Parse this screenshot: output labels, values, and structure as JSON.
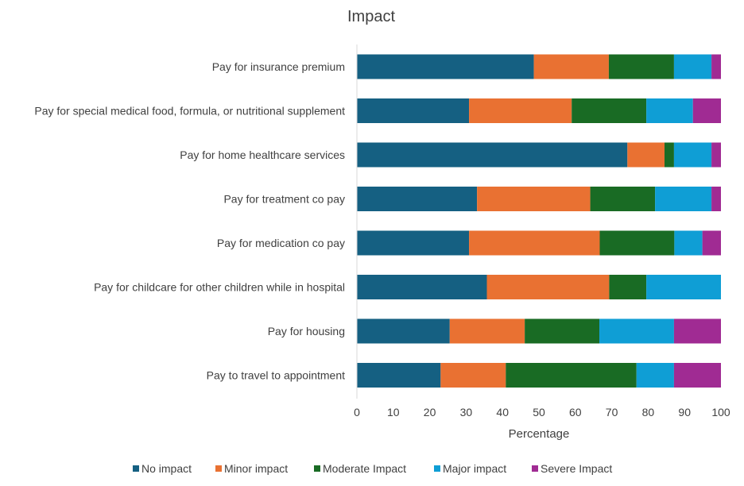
{
  "chart_data": {
    "type": "bar",
    "orientation": "horizontal",
    "stacked": true,
    "title": "Impact",
    "xlabel": "Percentage",
    "ylabel": "",
    "xlim": [
      0,
      100
    ],
    "xticks": [
      "0",
      "10",
      "20",
      "30",
      "40",
      "50",
      "60",
      "70",
      "80",
      "90",
      "100"
    ],
    "grid": false,
    "legend_position": "bottom",
    "categories": [
      "Pay for insurance premium",
      "Pay for special medical food, formula, or nutritional supplement",
      "Pay for home healthcare services",
      "Pay for treatment co pay",
      "Pay for medication co pay",
      "Pay for childcare for other children while in hospital",
      "Pay for housing",
      "Pay to travel to appointment"
    ],
    "series": [
      {
        "name": "No impact",
        "color": "#156082",
        "values": [
          48.6,
          30.8,
          74.3,
          33.0,
          30.8,
          35.7,
          25.5,
          23.0
        ]
      },
      {
        "name": "Minor impact",
        "color": "#E97132",
        "values": [
          20.6,
          28.2,
          10.2,
          31.1,
          35.9,
          33.6,
          20.6,
          17.9
        ]
      },
      {
        "name": "Moderate Impact",
        "color": "#196B24",
        "values": [
          17.9,
          20.5,
          2.6,
          17.8,
          20.5,
          10.2,
          20.5,
          35.9
        ]
      },
      {
        "name": "Major impact",
        "color": "#0F9ED5",
        "values": [
          10.3,
          12.8,
          10.3,
          15.5,
          7.7,
          20.5,
          20.5,
          10.3
        ]
      },
      {
        "name": "Severe Impact",
        "color": "#A02B93",
        "values": [
          2.6,
          7.7,
          2.6,
          2.6,
          5.1,
          0,
          12.9,
          12.9
        ]
      }
    ]
  }
}
